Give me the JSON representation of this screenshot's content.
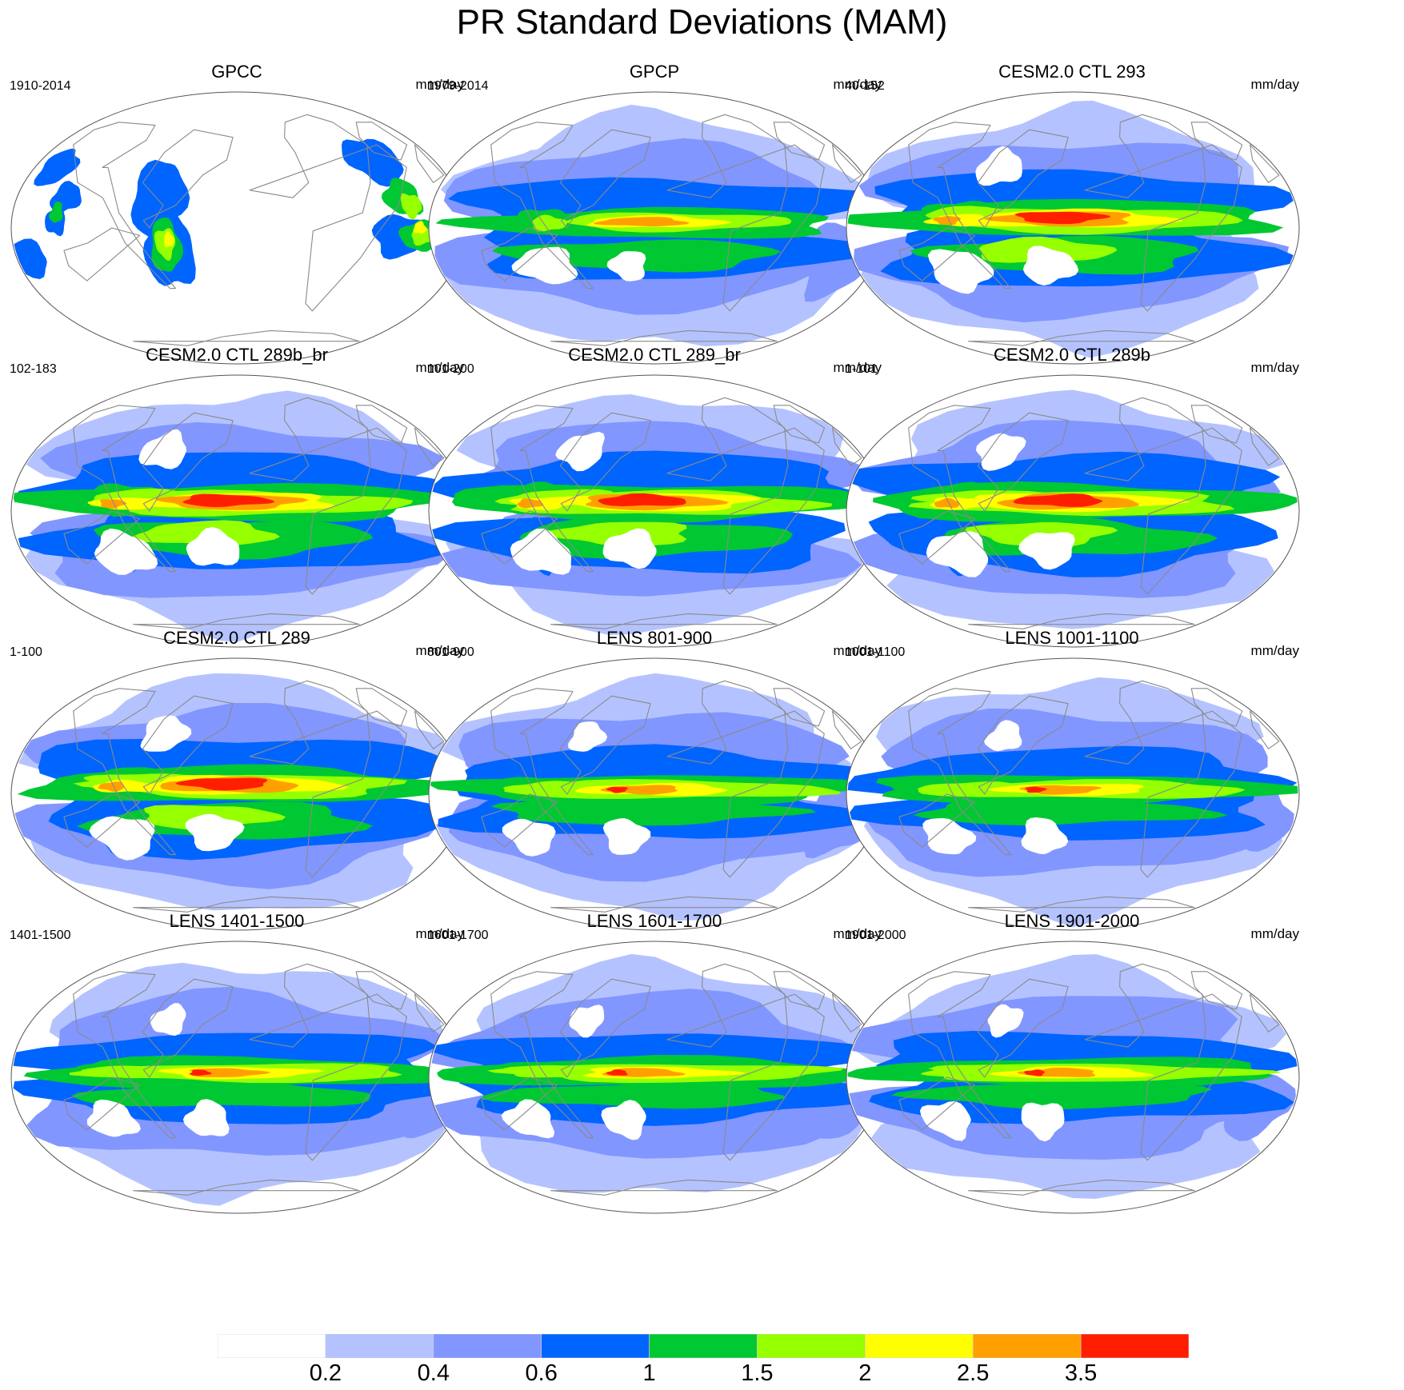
{
  "title": "PR Standard Deviations (MAM)",
  "units": "mm/day",
  "panels": [
    {
      "title": "GPCC",
      "years": "1910-2014",
      "pattern": "obs_land"
    },
    {
      "title": "GPCP",
      "years": "1979-2014",
      "pattern": "obs"
    },
    {
      "title": "CESM2.0 CTL 293",
      "years": "40-152",
      "pattern": "model_strong"
    },
    {
      "title": "CESM2.0 CTL 289b_br",
      "years": "102-183",
      "pattern": "model_strong"
    },
    {
      "title": "CESM2.0 CTL 289_br",
      "years": "101-200",
      "pattern": "model_strong"
    },
    {
      "title": "CESM2.0 CTL 289b",
      "years": "1-101",
      "pattern": "model_strong"
    },
    {
      "title": "CESM2.0 CTL 289",
      "years": "1-100",
      "pattern": "model_strong"
    },
    {
      "title": "LENS 801-900",
      "years": "801-900",
      "pattern": "lens"
    },
    {
      "title": "LENS 1001-1100",
      "years": "1001-1100",
      "pattern": "lens"
    },
    {
      "title": "LENS 1401-1500",
      "years": "1401-1500",
      "pattern": "lens"
    },
    {
      "title": "LENS 1601-1700",
      "years": "1601-1700",
      "pattern": "lens"
    },
    {
      "title": "LENS 1901-2000",
      "years": "1901-2000",
      "pattern": "lens"
    }
  ],
  "colorbar": {
    "labels": [
      "0.2",
      "0.4",
      "0.6",
      "1",
      "1.5",
      "2",
      "2.5",
      "3.5"
    ],
    "colors": [
      "#ffffff",
      "#b4c3ff",
      "#8296ff",
      "#0064ff",
      "#00c832",
      "#96ff00",
      "#ffff00",
      "#ffa000",
      "#ff1e00"
    ]
  }
}
